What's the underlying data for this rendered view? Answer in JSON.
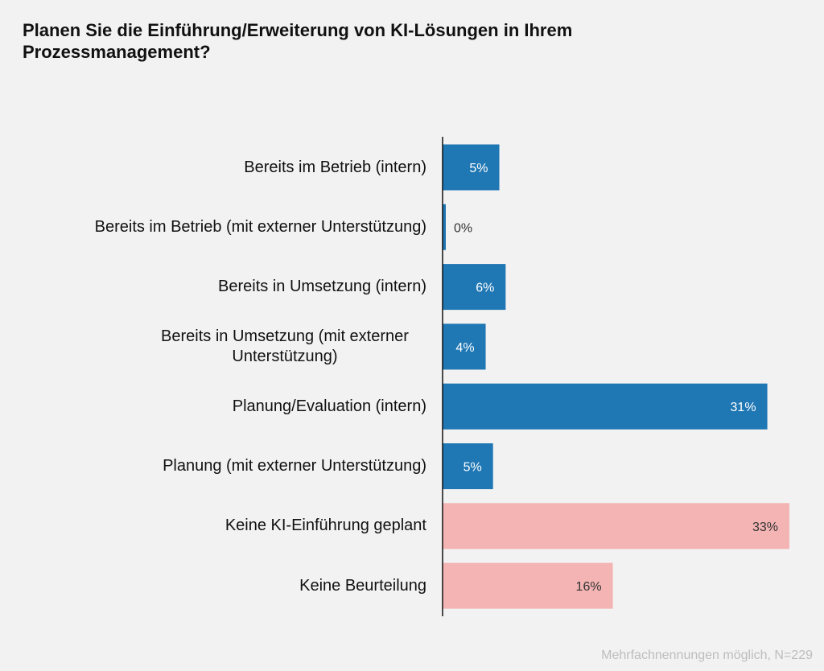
{
  "chart_data": {
    "type": "bar",
    "orientation": "horizontal",
    "title": "Planen Sie die Einführung/Erweiterung von KI-Lösungen in Ihrem Prozessmanagement?",
    "categories": [
      "Bereits im Betrieb (intern)",
      "Bereits im Betrieb (mit externer Unterstützung)",
      "Bereits in Umsetzung (intern)",
      "Bereits in Umsetzung (mit externer Unterstützung)",
      "Planung/Evaluation (intern)",
      "Planung (mit externer Unterstützung)",
      "Keine KI-Einführung geplant",
      "Keine Beurteilung"
    ],
    "values": [
      5.4,
      0.3,
      6.0,
      4.1,
      30.9,
      4.8,
      33.0,
      16.2
    ],
    "data_labels": [
      "5%",
      "0%",
      "6%",
      "4%",
      "31%",
      "5%",
      "33%",
      "16%"
    ],
    "bar_colors": [
      "#1f77b4",
      "#1f77b4",
      "#1f77b4",
      "#1f77b4",
      "#1f77b4",
      "#1f77b4",
      "#f4b4b4",
      "#f4b4b4"
    ],
    "xlim": [
      0,
      34
    ],
    "grid": false,
    "footnote": "Mehrfachnennungen möglich, N=229"
  }
}
